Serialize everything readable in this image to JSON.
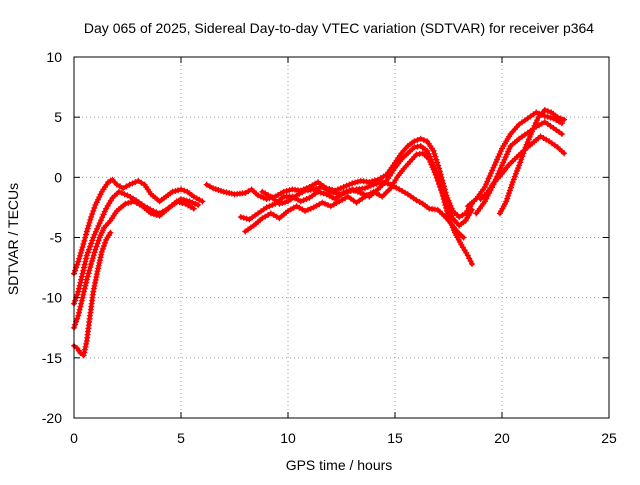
{
  "chart_data": {
    "type": "scatter",
    "title": "Day 065 of 2025, Sidereal Day-to-day VTEC variation (SDTVAR) for receiver p364",
    "xlabel": "GPS time / hours",
    "ylabel": "SDTVAR / TECUs",
    "xlim": [
      0,
      25
    ],
    "ylim": [
      -20,
      10
    ],
    "xticks": [
      0,
      5,
      10,
      15,
      20,
      25
    ],
    "yticks": [
      -20,
      -15,
      -10,
      -5,
      0,
      5,
      10
    ],
    "xtick_labels": [
      "0",
      "5",
      "10",
      "15",
      "20",
      "25"
    ],
    "ytick_labels": [
      "-20",
      "-15",
      "-10",
      "-5",
      "0",
      "5",
      "10"
    ],
    "grid": true,
    "marker": "+",
    "color": "#ff0000",
    "series": [
      {
        "name": "track-1",
        "x": [
          0.0,
          0.2,
          0.4,
          0.6,
          0.8,
          1.0,
          1.3,
          1.6,
          1.8,
          2.0,
          2.3,
          2.6,
          3.0,
          3.3,
          3.6,
          4.0,
          4.3,
          4.6,
          5.0,
          5.3,
          5.6,
          6.0
        ],
        "y": [
          -8.0,
          -7.0,
          -5.8,
          -4.5,
          -3.3,
          -2.3,
          -1.2,
          -0.4,
          -0.2,
          -0.6,
          -0.9,
          -0.6,
          -0.3,
          -0.6,
          -1.4,
          -2.0,
          -1.6,
          -1.2,
          -1.0,
          -1.2,
          -1.6,
          -2.0
        ]
      },
      {
        "name": "track-2",
        "x": [
          0.0,
          0.2,
          0.4,
          0.6,
          0.9,
          1.2,
          1.5,
          1.8,
          2.1,
          2.5,
          2.9,
          3.3,
          3.7,
          4.0,
          4.3,
          4.7,
          5.0,
          5.4,
          5.8
        ],
        "y": [
          -10.5,
          -9.5,
          -8.0,
          -6.5,
          -5.0,
          -3.8,
          -2.6,
          -1.7,
          -1.2,
          -1.5,
          -1.9,
          -2.4,
          -2.8,
          -3.0,
          -2.7,
          -2.2,
          -1.8,
          -2.0,
          -2.3
        ]
      },
      {
        "name": "track-3",
        "x": [
          0.0,
          0.2,
          0.4,
          0.6,
          0.8,
          1.0,
          1.2,
          1.4,
          1.7,
          2.0,
          2.4,
          2.8,
          3.2,
          3.6,
          4.0,
          4.4,
          4.8,
          5.2,
          5.6
        ],
        "y": [
          -12.5,
          -11.5,
          -10.0,
          -8.5,
          -7.2,
          -6.0,
          -5.0,
          -4.2,
          -3.6,
          -2.8,
          -2.2,
          -2.0,
          -2.4,
          -3.0,
          -3.2,
          -2.6,
          -2.0,
          -2.2,
          -2.6
        ]
      },
      {
        "name": "track-4",
        "x": [
          0.0,
          0.15,
          0.3,
          0.45,
          0.6,
          0.75,
          0.9,
          1.1,
          1.3,
          1.5,
          1.7
        ],
        "y": [
          -14.0,
          -14.2,
          -14.6,
          -14.8,
          -13.6,
          -11.5,
          -9.5,
          -7.8,
          -6.2,
          -5.2,
          -4.6
        ]
      },
      {
        "name": "track-5",
        "x": [
          6.2,
          6.5,
          7.0,
          7.5,
          8.0,
          8.3,
          8.6,
          9.0,
          9.4,
          9.8,
          10.2,
          10.6,
          11.0,
          11.4,
          11.8,
          12.2,
          12.6,
          13.0,
          13.4,
          13.8,
          14.2,
          14.6,
          15.0,
          15.3,
          15.6,
          15.9,
          16.2,
          16.5,
          16.8,
          17.1,
          17.4,
          17.7,
          18.0,
          18.3,
          18.6
        ],
        "y": [
          -0.6,
          -0.9,
          -1.2,
          -1.4,
          -1.3,
          -1.0,
          -1.5,
          -1.8,
          -1.6,
          -1.2,
          -1.0,
          -1.1,
          -0.8,
          -0.4,
          -0.9,
          -1.1,
          -0.8,
          -0.5,
          -0.3,
          -0.4,
          -0.2,
          0.2,
          1.2,
          2.0,
          2.6,
          3.0,
          3.2,
          3.0,
          2.2,
          0.5,
          -1.5,
          -2.8,
          -3.3,
          -3.0,
          -2.2
        ]
      },
      {
        "name": "track-6",
        "x": [
          7.8,
          8.2,
          8.6,
          9.0,
          9.4,
          9.8,
          10.2,
          10.6,
          11.0,
          11.4,
          11.8,
          12.2,
          12.6,
          13.0,
          13.4,
          13.8,
          14.2,
          14.6,
          15.0,
          15.3,
          15.6,
          15.9,
          16.2,
          16.5,
          16.8,
          17.1,
          17.4,
          17.7,
          18.0,
          18.3,
          18.6
        ],
        "y": [
          -3.3,
          -3.5,
          -3.0,
          -2.5,
          -2.2,
          -1.6,
          -1.6,
          -2.0,
          -1.7,
          -1.2,
          -1.4,
          -1.8,
          -1.3,
          -1.0,
          -1.3,
          -1.6,
          -1.0,
          -0.3,
          0.8,
          1.5,
          2.0,
          2.5,
          2.6,
          2.2,
          1.0,
          -0.5,
          -2.3,
          -3.4,
          -4.0,
          -3.6,
          -2.7
        ]
      },
      {
        "name": "track-7",
        "x": [
          8.0,
          8.4,
          8.8,
          9.2,
          9.6,
          10.0,
          10.4,
          10.8,
          11.2,
          11.6,
          12.0,
          12.4,
          12.8,
          13.2,
          13.6,
          14.0,
          14.4,
          14.8,
          15.1,
          15.4,
          15.7,
          16.0,
          16.3,
          16.6,
          16.9,
          17.2,
          17.5,
          17.8,
          18.1,
          18.4,
          18.6
        ],
        "y": [
          -4.5,
          -4.0,
          -3.4,
          -3.0,
          -3.4,
          -2.8,
          -2.4,
          -2.8,
          -2.5,
          -2.1,
          -2.4,
          -2.0,
          -1.6,
          -2.1,
          -1.6,
          -1.2,
          -1.6,
          -0.9,
          0.0,
          0.7,
          1.3,
          1.9,
          2.0,
          1.5,
          0.2,
          -1.3,
          -3.3,
          -4.6,
          -5.6,
          -6.5,
          -7.2
        ]
      },
      {
        "name": "track-8",
        "x": [
          8.8,
          9.2,
          9.6,
          10.0,
          10.4,
          10.8,
          11.2,
          11.6,
          12.0,
          12.4,
          12.8,
          13.2,
          13.6,
          14.0,
          14.4,
          14.8,
          15.2,
          15.6,
          16.0,
          16.3,
          16.6,
          17.0,
          17.3,
          17.6,
          17.9,
          18.2
        ],
        "y": [
          -1.2,
          -1.6,
          -2.2,
          -2.0,
          -1.5,
          -1.1,
          -1.0,
          -0.8,
          -1.2,
          -1.4,
          -1.2,
          -1.0,
          -0.9,
          -0.6,
          -0.4,
          -0.6,
          -1.0,
          -1.4,
          -1.9,
          -2.2,
          -2.6,
          -2.7,
          -3.2,
          -3.8,
          -4.5,
          -5.0
        ]
      },
      {
        "name": "track-9",
        "x": [
          18.4,
          18.8,
          19.2,
          19.6,
          20.0,
          20.4,
          20.8,
          21.2,
          21.6,
          22.0,
          22.4,
          22.8
        ],
        "y": [
          -2.4,
          -1.8,
          -0.8,
          0.8,
          2.4,
          3.6,
          4.4,
          4.9,
          5.4,
          5.1,
          4.9,
          4.5
        ]
      },
      {
        "name": "track-10",
        "x": [
          18.8,
          19.2,
          19.6,
          20.0,
          20.4,
          20.8,
          21.2,
          21.6,
          22.0,
          22.4,
          22.8
        ],
        "y": [
          -3.0,
          -2.0,
          -0.6,
          1.0,
          2.6,
          3.2,
          3.7,
          4.2,
          4.6,
          4.1,
          3.6
        ]
      },
      {
        "name": "track-11",
        "x": [
          19.0,
          19.3,
          19.6,
          20.0,
          20.3,
          20.7,
          21.0,
          21.4,
          21.8,
          22.2,
          22.6,
          22.9
        ],
        "y": [
          -1.8,
          -1.3,
          -0.5,
          0.3,
          1.0,
          1.7,
          2.2,
          2.8,
          3.4,
          3.0,
          2.5,
          2.0
        ]
      },
      {
        "name": "track-12",
        "x": [
          19.9,
          20.2,
          20.5,
          20.8,
          21.1,
          21.4,
          21.7,
          22.0,
          22.3,
          22.6,
          22.9
        ],
        "y": [
          -3.0,
          -2.0,
          -0.4,
          1.0,
          2.5,
          3.8,
          5.0,
          5.6,
          5.4,
          5.0,
          4.8
        ]
      }
    ]
  }
}
